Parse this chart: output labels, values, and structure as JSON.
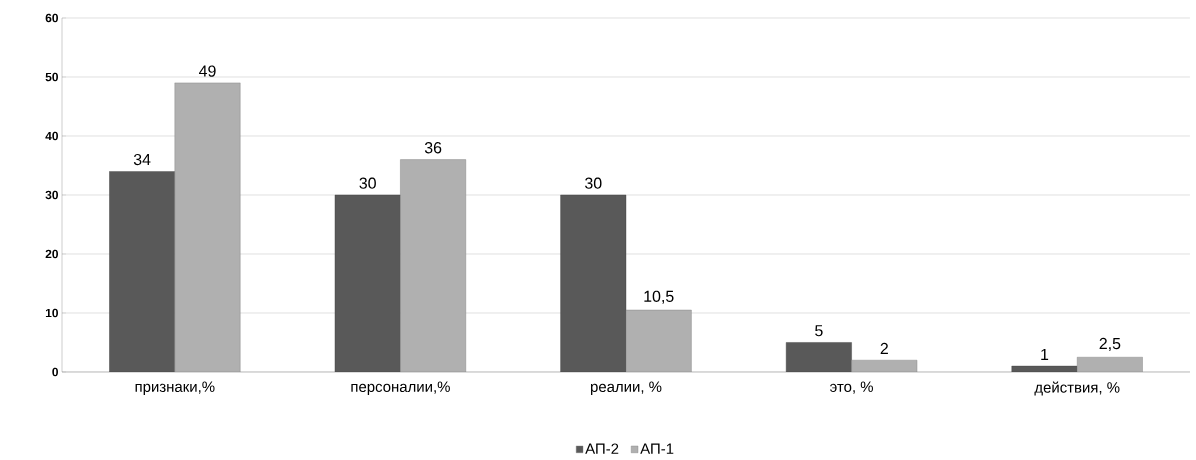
{
  "chart_data": {
    "type": "bar",
    "categories": [
      "признаки,%",
      "персоналии,%",
      "реалии, %",
      "это, %",
      "действия, %"
    ],
    "series": [
      {
        "name": "АП-2",
        "color": "#595959",
        "values": [
          34,
          30,
          30,
          5,
          1
        ],
        "value_labels": [
          "34",
          "30",
          "30",
          "5",
          "1"
        ]
      },
      {
        "name": "АП-1",
        "color": "#b0b0b0",
        "values": [
          49,
          36,
          10.5,
          2,
          2.5
        ],
        "value_labels": [
          "49",
          "36",
          "10,5",
          "2",
          "2,5"
        ]
      }
    ],
    "ylim": [
      0,
      60
    ],
    "yticks": [
      0,
      10,
      20,
      30,
      40,
      50,
      60
    ],
    "grid": "y",
    "legend": "bottom"
  }
}
